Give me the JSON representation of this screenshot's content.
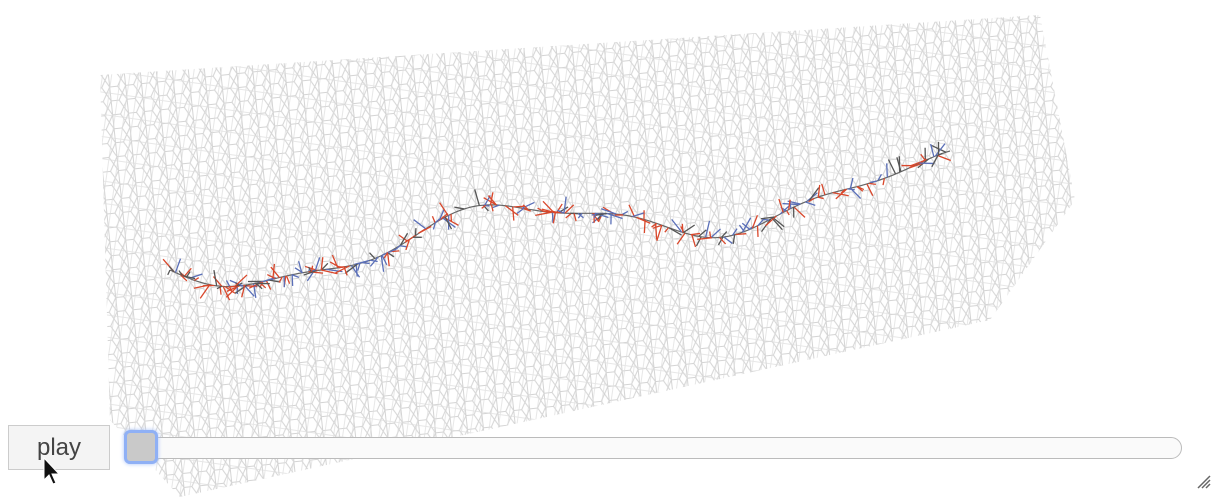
{
  "controls": {
    "play_label": "play"
  }
}
